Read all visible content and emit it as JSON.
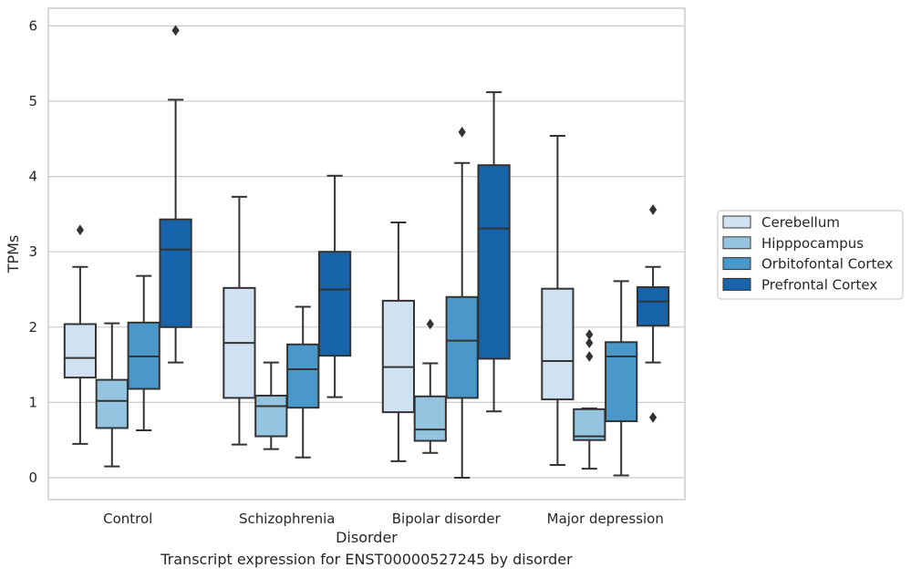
{
  "colors": {
    "Cerebellum": "#d0e1f2",
    "Hipppocampus": "#94c4df",
    "Orbitofontal Cortex": "#4a98c9",
    "Prefrontal Cortex": "#1764ab",
    "grid": "#cccccc",
    "line": "#333333",
    "frame": "#cccccc"
  },
  "caption": "Transcript expression for ENST00000527245 by disorder",
  "chart_data": {
    "type": "boxplot",
    "title": "",
    "xlabel": "Disorder",
    "ylabel": "TPMs",
    "ylim": [
      -0.28,
      6.25
    ],
    "yticks": [
      0,
      1,
      2,
      3,
      4,
      5,
      6
    ],
    "grid": "horizontal",
    "legend_position": "right",
    "categories": [
      "Control",
      "Schizophrenia",
      "Bipolar disorder",
      "Major depression"
    ],
    "series": [
      {
        "name": "Cerebellum",
        "boxes": [
          {
            "min": 0.45,
            "q1": 1.33,
            "median": 1.59,
            "q3": 2.04,
            "max": 2.8,
            "outliers": [
              3.29
            ]
          },
          {
            "min": 0.44,
            "q1": 1.06,
            "median": 1.79,
            "q3": 2.52,
            "max": 3.73,
            "outliers": []
          },
          {
            "min": 0.22,
            "q1": 0.87,
            "median": 1.47,
            "q3": 2.35,
            "max": 3.39,
            "outliers": []
          },
          {
            "min": 0.17,
            "q1": 1.04,
            "median": 1.55,
            "q3": 2.51,
            "max": 4.54,
            "outliers": []
          }
        ]
      },
      {
        "name": "Hipppocampus",
        "boxes": [
          {
            "min": 0.15,
            "q1": 0.66,
            "median": 1.02,
            "q3": 1.3,
            "max": 2.05,
            "outliers": []
          },
          {
            "min": 0.38,
            "q1": 0.55,
            "median": 0.95,
            "q3": 1.09,
            "max": 1.53,
            "outliers": []
          },
          {
            "min": 0.33,
            "q1": 0.49,
            "median": 0.64,
            "q3": 1.08,
            "max": 1.52,
            "outliers": [
              2.04
            ]
          },
          {
            "min": 0.12,
            "q1": 0.5,
            "median": 0.55,
            "q3": 0.91,
            "max": 0.92,
            "outliers": [
              1.61,
              1.79,
              1.9
            ]
          }
        ]
      },
      {
        "name": "Orbitofontal Cortex",
        "boxes": [
          {
            "min": 0.63,
            "q1": 1.18,
            "median": 1.61,
            "q3": 2.06,
            "max": 2.68,
            "outliers": []
          },
          {
            "min": 0.27,
            "q1": 0.93,
            "median": 1.44,
            "q3": 1.77,
            "max": 2.27,
            "outliers": []
          },
          {
            "min": 0.0,
            "q1": 1.06,
            "median": 1.82,
            "q3": 2.4,
            "max": 4.18,
            "outliers": [
              4.59
            ]
          },
          {
            "min": 0.03,
            "q1": 0.75,
            "median": 1.61,
            "q3": 1.8,
            "max": 2.61,
            "outliers": []
          }
        ]
      },
      {
        "name": "Prefrontal Cortex",
        "boxes": [
          {
            "min": 1.53,
            "q1": 2.0,
            "median": 3.03,
            "q3": 3.43,
            "max": 5.02,
            "outliers": [
              5.94
            ]
          },
          {
            "min": 1.07,
            "q1": 1.62,
            "median": 2.5,
            "q3": 3.0,
            "max": 4.01,
            "outliers": []
          },
          {
            "min": 0.88,
            "q1": 1.58,
            "median": 3.31,
            "q3": 4.15,
            "max": 5.12,
            "outliers": []
          },
          {
            "min": 1.53,
            "q1": 2.02,
            "median": 2.34,
            "q3": 2.53,
            "max": 2.8,
            "outliers": [
              0.8,
              3.56
            ]
          }
        ]
      }
    ]
  }
}
